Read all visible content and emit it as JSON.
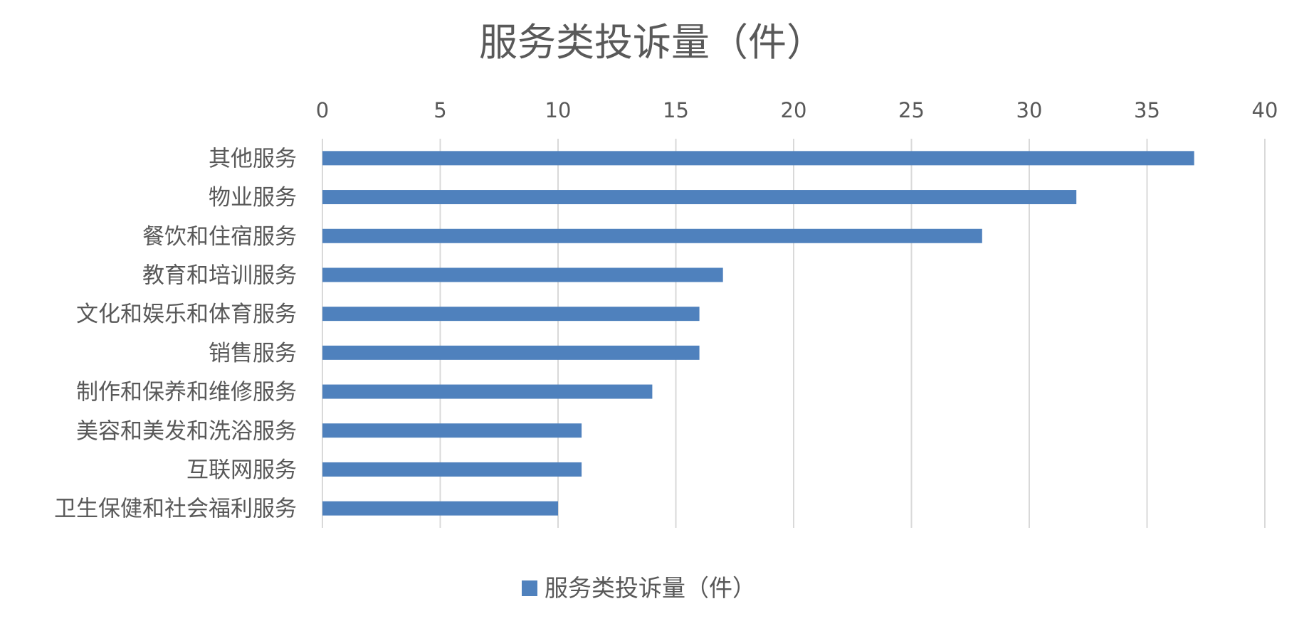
{
  "chart_data": {
    "type": "bar",
    "orientation": "horizontal",
    "title": "服务类投诉量（件）",
    "categories": [
      "其他服务",
      "物业服务",
      "餐饮和住宿服务",
      "教育和培训服务",
      "文化和娱乐和体育服务",
      "销售服务",
      "制作和保养和维修服务",
      "美容和美发和洗浴服务",
      "互联网服务",
      "卫生保健和社会福利服务"
    ],
    "series": [
      {
        "name": "服务类投诉量（件）",
        "color": "#4f81bd",
        "values": [
          37,
          32,
          28,
          17,
          16,
          16,
          14,
          11,
          11,
          10
        ]
      }
    ],
    "x_ticks": [
      0,
      5,
      10,
      15,
      20,
      25,
      30,
      35,
      40
    ],
    "xlim": [
      0,
      40
    ],
    "x_axis_position": "top",
    "grid": true,
    "legend_position": "bottom",
    "gridline_color": "#d9d9d9",
    "text_color": "#595959"
  }
}
